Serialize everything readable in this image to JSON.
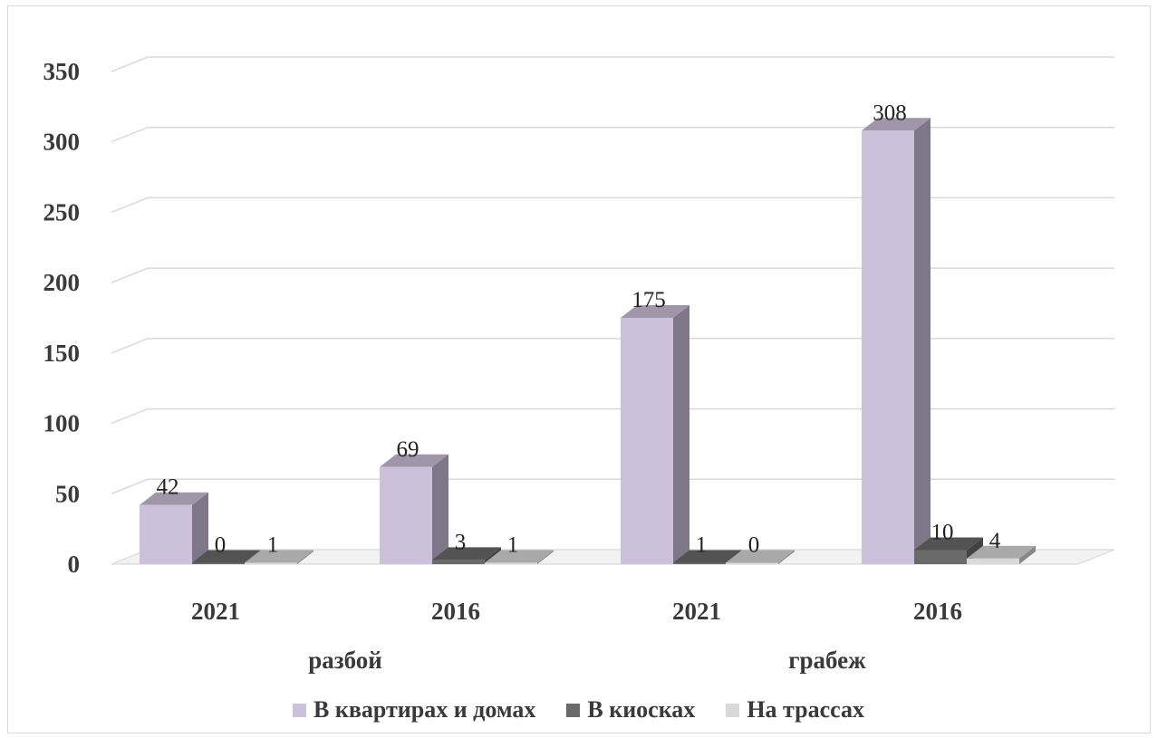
{
  "chart_data": {
    "type": "bar",
    "title": "",
    "xlabel": "",
    "ylabel": "",
    "ylim": [
      0,
      350
    ],
    "y_ticks": [
      0,
      50,
      100,
      150,
      200,
      250,
      300,
      350
    ],
    "grid": true,
    "style": "3d-clustered-column",
    "legend_position": "bottom",
    "categories": [
      {
        "group": "разбой",
        "year": "2021"
      },
      {
        "group": "разбой",
        "year": "2016"
      },
      {
        "group": "грабеж",
        "year": "2021"
      },
      {
        "group": "грабеж",
        "year": "2016"
      }
    ],
    "groups": [
      "разбой",
      "грабеж"
    ],
    "series": [
      {
        "name": "В квартирах и домах",
        "color": "#ccc0da",
        "values": [
          42,
          69,
          175,
          308
        ]
      },
      {
        "name": "В киосках",
        "color": "#6a6a6a",
        "values": [
          0,
          3,
          1,
          10
        ]
      },
      {
        "name": "На трассах",
        "color": "#d9d9d9",
        "values": [
          1,
          1,
          0,
          4
        ]
      }
    ]
  }
}
